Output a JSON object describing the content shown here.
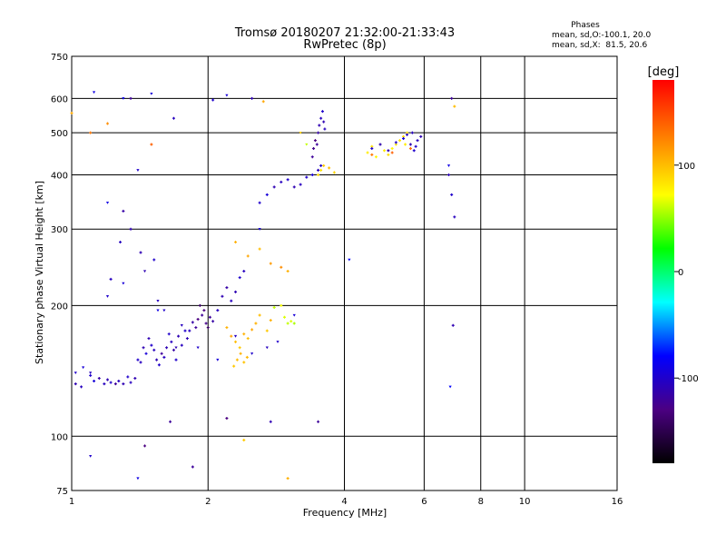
{
  "chart_data": {
    "type": "scatter",
    "title": "Tromsø 20180207 21:32:00-21:33:43",
    "subtitle": "RwPretec (8p)",
    "xlabel": "Frequency [MHz]",
    "ylabel": "Stationary phase Virtual Height [km]",
    "x_scale": "log",
    "y_scale": "log",
    "xlim": [
      1,
      16
    ],
    "ylim": [
      75,
      750
    ],
    "x_ticks": [
      1,
      2,
      4,
      6,
      8,
      10,
      16
    ],
    "y_ticks": [
      75,
      100,
      200,
      300,
      400,
      500,
      600,
      750
    ],
    "grid": true,
    "phases_box": {
      "title": "Phases",
      "line1": "mean, sd,O:-100.1, 20.0",
      "line2": "mean, sd,X:  81.5, 20.6"
    },
    "colorbar": {
      "label": "[deg]",
      "range": [
        -180,
        180
      ],
      "ticks": [
        100,
        0,
        -100
      ],
      "colors": [
        "#000000",
        "#4b0082",
        "#0000ff",
        "#00ffff",
        "#00ff00",
        "#ffff00",
        "#ff8000",
        "#ff0000"
      ]
    },
    "series": [
      {
        "marker": "plus",
        "points": [
          [
            1.02,
            132,
            -110
          ],
          [
            1.05,
            130,
            -105
          ],
          [
            1.1,
            138,
            -100
          ],
          [
            1.12,
            134,
            -95
          ],
          [
            1.15,
            136,
            -115
          ],
          [
            1.18,
            132,
            -105
          ],
          [
            1.2,
            135,
            -110
          ],
          [
            1.22,
            133,
            -100
          ],
          [
            1.25,
            132,
            -120
          ],
          [
            1.27,
            134,
            -105
          ],
          [
            1.3,
            132,
            -110
          ],
          [
            1.33,
            137,
            -100
          ],
          [
            1.35,
            133,
            -105
          ],
          [
            1.38,
            136,
            -110
          ],
          [
            1.4,
            150,
            -100
          ],
          [
            1.42,
            148,
            -105
          ],
          [
            1.44,
            160,
            -110
          ],
          [
            1.46,
            155,
            -95
          ],
          [
            1.48,
            168,
            -110
          ],
          [
            1.5,
            162,
            -100
          ],
          [
            1.52,
            158,
            -105
          ],
          [
            1.54,
            150,
            -110
          ],
          [
            1.56,
            146,
            -100
          ],
          [
            1.58,
            155,
            -120
          ],
          [
            1.6,
            152,
            -105
          ],
          [
            1.62,
            160,
            -110
          ],
          [
            1.64,
            172,
            -100
          ],
          [
            1.66,
            165,
            -105
          ],
          [
            1.68,
            158,
            -115
          ],
          [
            1.7,
            150,
            -100
          ],
          [
            1.72,
            170,
            -110
          ],
          [
            1.75,
            162,
            -105
          ],
          [
            1.78,
            175,
            -100
          ],
          [
            1.8,
            168,
            -110
          ],
          [
            1.82,
            175,
            -105
          ],
          [
            1.85,
            183,
            -115
          ],
          [
            1.88,
            178,
            -120
          ],
          [
            1.9,
            186,
            -130
          ],
          [
            1.92,
            200,
            -140
          ],
          [
            1.94,
            190,
            -120
          ],
          [
            1.96,
            195,
            -130
          ],
          [
            1.98,
            182,
            -125
          ],
          [
            2.0,
            178,
            -140
          ],
          [
            2.02,
            188,
            -120
          ],
          [
            2.05,
            184,
            -115
          ],
          [
            2.1,
            195,
            -105
          ],
          [
            2.15,
            210,
            -110
          ],
          [
            2.2,
            220,
            -115
          ],
          [
            2.25,
            205,
            -105
          ],
          [
            2.3,
            215,
            -110
          ],
          [
            2.35,
            232,
            -100
          ],
          [
            2.4,
            240,
            -105
          ],
          [
            2.2,
            178,
            105
          ],
          [
            2.25,
            170,
            110
          ],
          [
            2.3,
            165,
            100
          ],
          [
            2.35,
            160,
            95
          ],
          [
            2.4,
            172,
            105
          ],
          [
            2.45,
            168,
            100
          ],
          [
            2.5,
            176,
            110
          ],
          [
            2.55,
            182,
            105
          ],
          [
            2.6,
            190,
            100
          ],
          [
            2.7,
            175,
            95
          ],
          [
            2.75,
            185,
            105
          ],
          [
            2.8,
            198,
            60
          ],
          [
            2.9,
            200,
            70
          ],
          [
            2.95,
            188,
            65
          ],
          [
            3.0,
            182,
            60
          ],
          [
            3.05,
            184,
            65
          ],
          [
            3.1,
            182,
            55
          ],
          [
            2.28,
            145,
            95
          ],
          [
            2.32,
            150,
            100
          ],
          [
            2.36,
            155,
            105
          ],
          [
            2.4,
            148,
            98
          ],
          [
            2.44,
            152,
            102
          ],
          [
            2.3,
            280,
            105
          ],
          [
            2.45,
            260,
            110
          ],
          [
            2.6,
            270,
            100
          ],
          [
            2.75,
            250,
            115
          ],
          [
            2.9,
            245,
            120
          ],
          [
            3.0,
            240,
            105
          ],
          [
            2.6,
            345,
            -100
          ],
          [
            2.7,
            360,
            -95
          ],
          [
            2.8,
            375,
            -110
          ],
          [
            2.9,
            385,
            -105
          ],
          [
            3.0,
            390,
            -100
          ],
          [
            3.1,
            375,
            -110
          ],
          [
            3.2,
            380,
            -105
          ],
          [
            3.3,
            395,
            -100
          ],
          [
            3.4,
            400,
            -95
          ],
          [
            3.5,
            410,
            -105
          ],
          [
            3.55,
            420,
            -100
          ],
          [
            3.4,
            440,
            -120
          ],
          [
            3.42,
            460,
            -125
          ],
          [
            3.45,
            480,
            -130
          ],
          [
            3.48,
            470,
            -120
          ],
          [
            3.5,
            500,
            -115
          ],
          [
            3.52,
            520,
            -110
          ],
          [
            3.55,
            540,
            -105
          ],
          [
            3.58,
            560,
            -100
          ],
          [
            3.6,
            530,
            -110
          ],
          [
            3.62,
            510,
            -105
          ],
          [
            3.5,
            400,
            90
          ],
          [
            3.55,
            410,
            85
          ],
          [
            3.6,
            420,
            95
          ],
          [
            3.7,
            415,
            100
          ],
          [
            3.8,
            405,
            90
          ],
          [
            4.5,
            450,
            80
          ],
          [
            4.6,
            465,
            85
          ],
          [
            4.7,
            440,
            75
          ],
          [
            4.8,
            470,
            90
          ],
          [
            4.9,
            455,
            80
          ],
          [
            5.0,
            445,
            85
          ],
          [
            5.1,
            460,
            75
          ],
          [
            5.2,
            470,
            80
          ],
          [
            5.3,
            480,
            85
          ],
          [
            5.4,
            490,
            90
          ],
          [
            5.5,
            500,
            85
          ],
          [
            5.45,
            470,
            80
          ],
          [
            4.6,
            460,
            -100
          ],
          [
            4.8,
            470,
            -105
          ],
          [
            5.0,
            455,
            -110
          ],
          [
            5.2,
            475,
            -100
          ],
          [
            5.4,
            485,
            -95
          ],
          [
            5.5,
            495,
            -105
          ],
          [
            5.6,
            470,
            -110
          ],
          [
            5.7,
            455,
            -100
          ],
          [
            5.8,
            480,
            -105
          ],
          [
            5.9,
            490,
            -110
          ],
          [
            5.75,
            465,
            -100
          ],
          [
            5.65,
            500,
            -105
          ],
          [
            4.6,
            445,
            130
          ],
          [
            5.1,
            450,
            140
          ],
          [
            5.6,
            460,
            135
          ],
          [
            6.8,
            400,
            -110
          ],
          [
            6.9,
            360,
            -100
          ],
          [
            7.0,
            320,
            -105
          ],
          [
            6.95,
            180,
            -110
          ],
          [
            6.9,
            600,
            -120
          ],
          [
            7.0,
            575,
            100
          ],
          [
            1.3,
            330,
            -115
          ],
          [
            1.35,
            300,
            -110
          ],
          [
            1.28,
            280,
            -105
          ],
          [
            1.42,
            265,
            -110
          ],
          [
            1.52,
            255,
            -100
          ],
          [
            1.22,
            230,
            -105
          ],
          [
            1.35,
            600,
            -120
          ],
          [
            1.68,
            540,
            -105
          ],
          [
            1.5,
            470,
            140
          ],
          [
            2.05,
            595,
            -100
          ],
          [
            2.5,
            600,
            -110
          ],
          [
            2.65,
            590,
            110
          ],
          [
            2.2,
            110,
            -130
          ],
          [
            1.65,
            108,
            -120
          ],
          [
            2.75,
            108,
            -110
          ],
          [
            3.5,
            108,
            -120
          ],
          [
            1.85,
            85,
            -120
          ],
          [
            1.45,
            95,
            -130
          ],
          [
            2.4,
            98,
            95
          ],
          [
            3.0,
            80,
            105
          ],
          [
            1.1,
            500,
            130
          ],
          [
            1.2,
            525,
            120
          ],
          [
            1.0,
            555,
            110
          ]
        ]
      },
      {
        "marker": "triangle",
        "points": [
          [
            1.02,
            140,
            -100
          ],
          [
            1.06,
            144,
            -95
          ],
          [
            1.1,
            140,
            -105
          ],
          [
            1.2,
            210,
            -100
          ],
          [
            1.3,
            225,
            -95
          ],
          [
            1.45,
            240,
            -110
          ],
          [
            1.55,
            205,
            -105
          ],
          [
            1.6,
            195,
            -100
          ],
          [
            1.75,
            180,
            -105
          ],
          [
            1.9,
            160,
            -100
          ],
          [
            2.1,
            150,
            -95
          ],
          [
            2.3,
            170,
            -105
          ],
          [
            2.5,
            155,
            -100
          ],
          [
            2.7,
            160,
            -105
          ],
          [
            2.85,
            165,
            -100
          ],
          [
            3.1,
            190,
            -95
          ],
          [
            1.12,
            620,
            -90
          ],
          [
            1.2,
            345,
            -90
          ],
          [
            1.4,
            410,
            -100
          ],
          [
            1.5,
            615,
            -95
          ],
          [
            1.7,
            160,
            -110
          ],
          [
            4.1,
            255,
            -80
          ],
          [
            6.8,
            420,
            -90
          ],
          [
            6.85,
            130,
            -80
          ],
          [
            1.1,
            90,
            -100
          ],
          [
            1.4,
            80,
            -90
          ],
          [
            1.3,
            600,
            -85
          ],
          [
            2.2,
            610,
            -95
          ],
          [
            3.2,
            500,
            90
          ],
          [
            3.3,
            470,
            60
          ],
          [
            1.55,
            195,
            -90
          ],
          [
            2.6,
            300,
            -95
          ]
        ]
      }
    ]
  }
}
